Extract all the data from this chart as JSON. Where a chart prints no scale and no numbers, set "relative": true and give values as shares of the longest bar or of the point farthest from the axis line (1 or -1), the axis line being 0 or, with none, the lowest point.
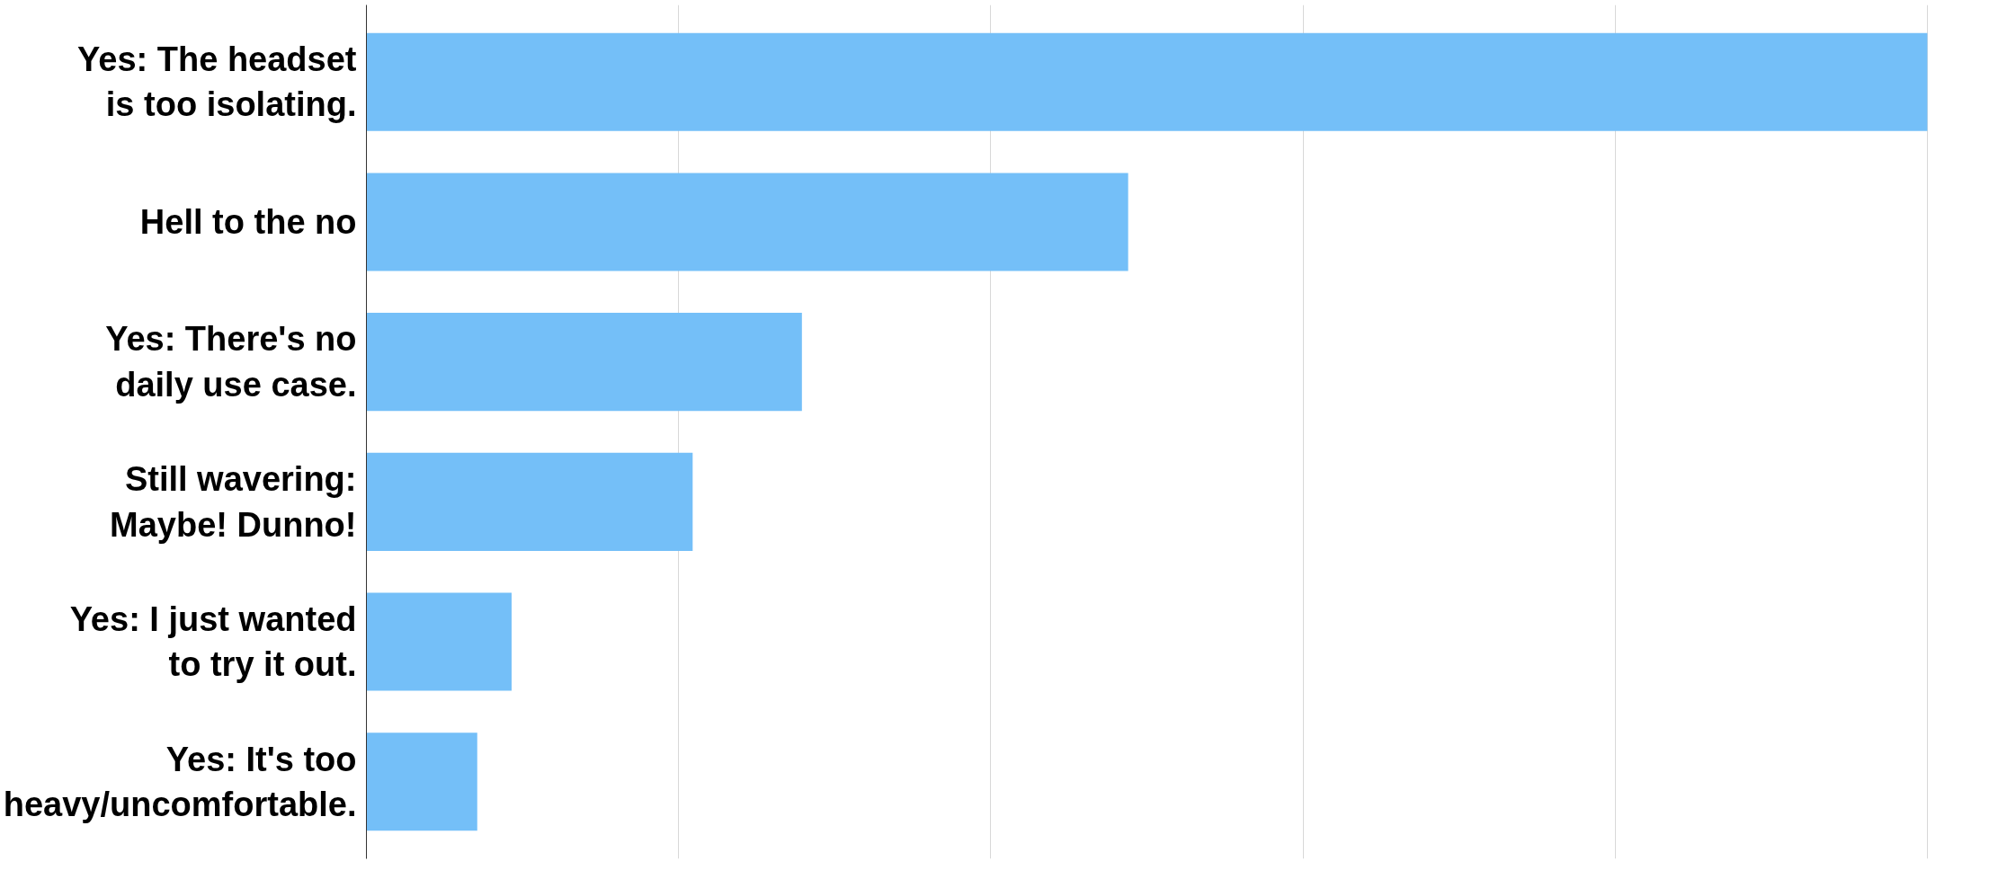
{
  "chart_data": {
    "type": "bar",
    "orientation": "horizontal",
    "relative": true,
    "grid": "x",
    "color": "#74bff8",
    "categories": [
      "Yes: The headset is too isolating.",
      "Hell to the no",
      "Yes: There's no daily use case.",
      "Still wavering: Maybe! Dunno!",
      "Yes: I just wanted to try it out.",
      "Yes: It's too heavy/uncomfortable."
    ],
    "values": [
      1,
      0.488,
      0.279,
      0.209,
      0.093,
      0.071
    ]
  }
}
